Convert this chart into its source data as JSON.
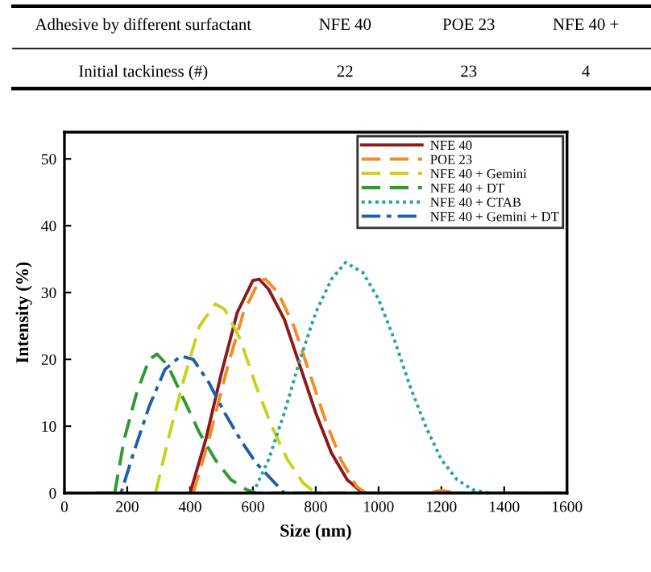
{
  "chart_data": {
    "type": "line",
    "xlabel": "Size (nm)",
    "ylabel": "Intensity (%)",
    "xlim": [
      0,
      1600
    ],
    "xticks": [
      0,
      200,
      400,
      600,
      800,
      1000,
      1200,
      1400,
      1600
    ],
    "ylim": [
      0,
      54
    ],
    "yticks": [
      0,
      10,
      20,
      30,
      40,
      50
    ],
    "grid": false,
    "legend": "top right",
    "marker": "none",
    "annotations": [
      "Adhesive by different surfactant",
      "NFE 40",
      "POE 23",
      "NFE 40 +",
      "Initial tackiness (#)",
      "22",
      "23",
      "4"
    ],
    "series": [
      {
        "name": "NFE 40",
        "color": "#8b1a1a",
        "line_style": "solid",
        "x": [
          400,
          450,
          500,
          550,
          600,
          620,
          650,
          700,
          750,
          800,
          850,
          900,
          950,
          1600
        ],
        "values": [
          0,
          8,
          18,
          27,
          31.8,
          32,
          30.5,
          26,
          19,
          12,
          6,
          2,
          0,
          0
        ]
      },
      {
        "name": "POE 23",
        "color": "#f28c28",
        "line_style": "dashed",
        "x": [
          410,
          460,
          520,
          570,
          620,
          640,
          680,
          730,
          780,
          830,
          880,
          930,
          960,
          1150,
          1200,
          1250,
          1600
        ],
        "values": [
          0,
          8,
          19,
          27,
          31.8,
          32,
          30,
          25,
          18,
          11,
          5,
          1,
          0,
          0,
          0.4,
          0,
          0
        ]
      },
      {
        "name": "NFE 40 + Gemini",
        "color": "#c8d21e",
        "line_style": "dashed",
        "x": [
          290,
          330,
          380,
          430,
          480,
          510,
          560,
          610,
          660,
          710,
          760,
          800,
          1600
        ],
        "values": [
          0,
          8,
          17,
          25,
          28.3,
          27.5,
          23,
          16,
          10,
          5,
          1.5,
          0,
          0
        ]
      },
      {
        "name": "NFE 40 + DT",
        "color": "#2e9a2e",
        "line_style": "dashed",
        "x": [
          160,
          190,
          230,
          270,
          295,
          330,
          380,
          430,
          480,
          530,
          580,
          610,
          1600
        ],
        "values": [
          0,
          8,
          15,
          20,
          20.8,
          19,
          14,
          9,
          5,
          2,
          0.5,
          0,
          0
        ]
      },
      {
        "name": "NFE 40 + CTAB",
        "color": "#2aa39a",
        "line_style": "dotted",
        "x": [
          600,
          650,
          700,
          750,
          800,
          850,
          895,
          950,
          1000,
          1050,
          1100,
          1150,
          1200,
          1250,
          1300,
          1350,
          1600
        ],
        "values": [
          0,
          5,
          12,
          20,
          27,
          32,
          34.5,
          33,
          29,
          23,
          16,
          10,
          5,
          2,
          0.5,
          0,
          0
        ]
      },
      {
        "name": "NFE 40 + Gemini + DT",
        "color": "#1f5fa8",
        "line_style": "dashdot",
        "x": [
          100,
          180,
          220,
          270,
          320,
          370,
          410,
          460,
          510,
          560,
          610,
          660,
          700,
          1600
        ],
        "values": [
          0,
          0,
          6,
          13,
          18.5,
          20.5,
          20,
          16.5,
          12,
          8,
          4.5,
          2,
          0,
          0
        ]
      }
    ]
  }
}
